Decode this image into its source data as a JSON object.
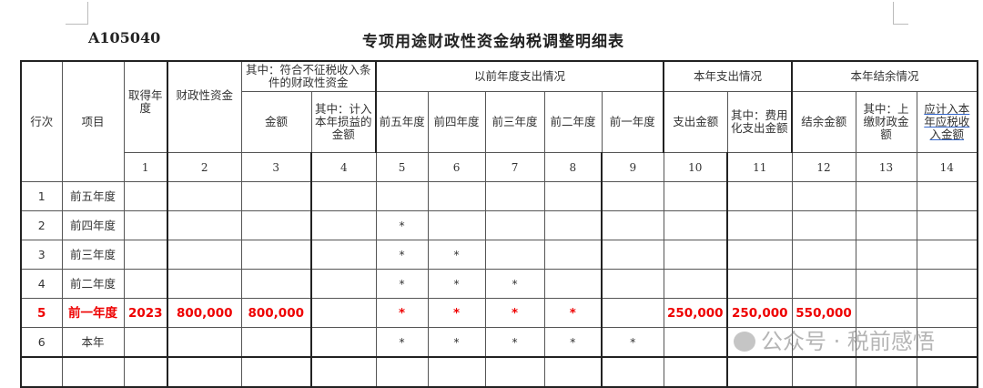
{
  "form_code": "A105040",
  "title": "专项用途财政性资金纳税调整明细表",
  "header": {
    "row_no": "行次",
    "item": "项目",
    "year_obtained": "取得年度",
    "fiscal_funds": "财政性资金",
    "non_taxable_group": "其中：符合不征税收入条件的财政性资金",
    "amount": "金额",
    "included_current": "其中：计入本年损益的金额",
    "prior_group": "以前年度支出情况",
    "prior_cols": [
      "前五年度",
      "前四年度",
      "前三年度",
      "前二年度",
      "前一年度"
    ],
    "current_exp_group": "本年支出情况",
    "exp_amount": "支出金额",
    "expensed": "其中：费用化支出金额",
    "balance_group": "本年结余情况",
    "balance": "结余金额",
    "remitted": "其中：上缴财政金额",
    "taxable": "应计入本年应税收入金额",
    "col_numbers": [
      "1",
      "2",
      "3",
      "4",
      "5",
      "6",
      "7",
      "8",
      "9",
      "10",
      "11",
      "12",
      "13",
      "14"
    ]
  },
  "rows": [
    {
      "no": "1",
      "item": "前五年度",
      "cells": [
        "",
        "",
        "",
        "",
        "",
        "",
        "",
        "",
        "",
        "",
        "",
        "",
        "",
        ""
      ]
    },
    {
      "no": "2",
      "item": "前四年度",
      "cells": [
        "",
        "",
        "",
        "",
        "*",
        "",
        "",
        "",
        "",
        "",
        "",
        "",
        "",
        ""
      ]
    },
    {
      "no": "3",
      "item": "前三年度",
      "cells": [
        "",
        "",
        "",
        "",
        "*",
        "*",
        "",
        "",
        "",
        "",
        "",
        "",
        "",
        ""
      ]
    },
    {
      "no": "4",
      "item": "前二年度",
      "cells": [
        "",
        "",
        "",
        "",
        "*",
        "*",
        "*",
        "",
        "",
        "",
        "",
        "",
        "",
        ""
      ]
    },
    {
      "no": "5",
      "item": "前一年度",
      "cells": [
        "2023",
        "800,000",
        "800,000",
        "",
        "*",
        "*",
        "*",
        "*",
        "",
        "250,000",
        "250,000",
        "550,000",
        "",
        ""
      ]
    },
    {
      "no": "6",
      "item": "本年",
      "cells": [
        "",
        "",
        "",
        "",
        "*",
        "*",
        "*",
        "*",
        "*",
        "",
        "",
        "",
        "",
        ""
      ]
    },
    {
      "no": "",
      "item": "",
      "cells": [
        "",
        "",
        "",
        "",
        "",
        "",
        "",
        "",
        "",
        "",
        "",
        "",
        "",
        ""
      ]
    }
  ],
  "highlight_color": "#ee0000",
  "watermark": "公众号 · 税前感悟"
}
